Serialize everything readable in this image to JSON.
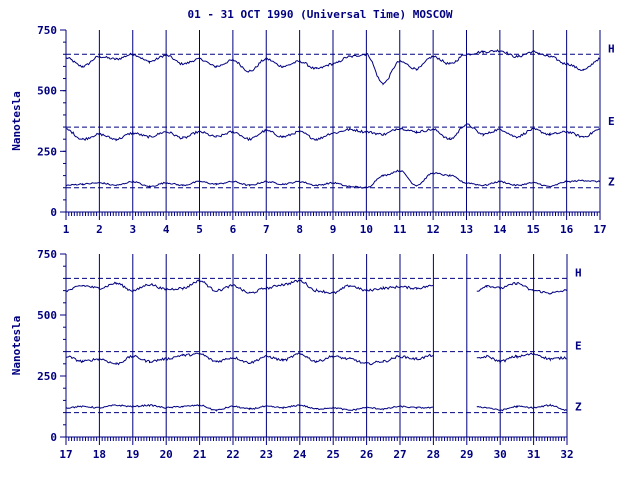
{
  "title": "01 - 31 OCT 1990 (Universal Time) MOSCOW",
  "colors": {
    "ink": "#000080",
    "background": "#ffffff"
  },
  "chart_data": [
    {
      "type": "line",
      "ylabel": "Nanotesla",
      "xlabel": "",
      "xlim": [
        1,
        17
      ],
      "ylim": [
        0,
        750
      ],
      "x_ticks": [
        "1",
        "2",
        "3",
        "4",
        "5",
        "6",
        "7",
        "8",
        "9",
        "10",
        "11",
        "12",
        "13",
        "14",
        "15",
        "16",
        "17"
      ],
      "y_ticks": [
        "0",
        "250",
        "500",
        "750"
      ],
      "grid": "vertical lines at each day",
      "reference_levels": [
        650,
        350,
        100
      ],
      "series": [
        {
          "name": "H",
          "baseline": 650,
          "x": [
            1,
            1.5,
            2,
            2.5,
            3,
            3.5,
            4,
            4.5,
            5,
            5.5,
            6,
            6.5,
            7,
            7.5,
            8,
            8.5,
            9,
            9.5,
            10,
            10.5,
            11,
            11.5,
            12,
            12.5,
            13,
            13.5,
            14,
            14.5,
            15,
            15.5,
            16,
            16.5,
            17
          ],
          "values": [
            635,
            600,
            640,
            630,
            650,
            620,
            645,
            610,
            630,
            600,
            625,
            580,
            630,
            600,
            620,
            590,
            610,
            640,
            650,
            530,
            620,
            590,
            640,
            610,
            650,
            660,
            665,
            640,
            660,
            640,
            610,
            585,
            630
          ]
        },
        {
          "name": "E",
          "baseline": 350,
          "x": [
            1,
            1.5,
            2,
            2.5,
            3,
            3.5,
            4,
            4.5,
            5,
            5.5,
            6,
            6.5,
            7,
            7.5,
            8,
            8.5,
            9,
            9.5,
            10,
            10.5,
            11,
            11.5,
            12,
            12.5,
            13,
            13.5,
            14,
            14.5,
            15,
            15.5,
            16,
            16.5,
            17
          ],
          "values": [
            340,
            300,
            320,
            300,
            325,
            310,
            330,
            305,
            330,
            310,
            330,
            300,
            335,
            310,
            330,
            300,
            325,
            340,
            330,
            320,
            345,
            330,
            340,
            300,
            360,
            320,
            340,
            310,
            340,
            320,
            330,
            310,
            340
          ]
        },
        {
          "name": "Z",
          "baseline": 100,
          "x": [
            1,
            1.5,
            2,
            2.5,
            3,
            3.5,
            4,
            4.5,
            5,
            5.5,
            6,
            6.5,
            7,
            7.5,
            8,
            8.5,
            9,
            9.5,
            10,
            10.5,
            11,
            11.5,
            12,
            12.5,
            13,
            13.5,
            14,
            14.5,
            15,
            15.5,
            16,
            16.5,
            17
          ],
          "values": [
            110,
            115,
            120,
            110,
            125,
            105,
            120,
            110,
            125,
            115,
            125,
            110,
            125,
            115,
            125,
            110,
            120,
            105,
            100,
            150,
            170,
            110,
            160,
            150,
            120,
            110,
            125,
            110,
            120,
            105,
            125,
            130,
            125
          ]
        }
      ]
    },
    {
      "type": "line",
      "ylabel": "Nanotesla",
      "xlabel": "",
      "xlim": [
        17,
        32
      ],
      "ylim": [
        0,
        750
      ],
      "x_ticks": [
        "17",
        "18",
        "19",
        "20",
        "21",
        "22",
        "23",
        "24",
        "25",
        "26",
        "27",
        "28",
        "29",
        "30",
        "31",
        "32"
      ],
      "y_ticks": [
        "0",
        "250",
        "500",
        "750"
      ],
      "grid": "vertical lines at each day",
      "reference_levels": [
        650,
        350,
        100
      ],
      "data_gap": [
        28,
        29.3
      ],
      "series": [
        {
          "name": "H",
          "baseline": 650,
          "x": [
            17,
            17.5,
            18,
            18.5,
            19,
            19.5,
            20,
            20.5,
            21,
            21.5,
            22,
            22.5,
            23,
            23.5,
            24,
            24.5,
            25,
            25.5,
            26,
            26.5,
            27,
            27.5,
            28,
            null,
            29.3,
            29.6,
            30,
            30.5,
            31,
            31.5,
            32
          ],
          "values": [
            600,
            620,
            610,
            630,
            600,
            625,
            605,
            610,
            640,
            600,
            620,
            590,
            610,
            625,
            640,
            600,
            590,
            620,
            600,
            610,
            615,
            610,
            620,
            null,
            600,
            620,
            610,
            630,
            600,
            590,
            600
          ]
        },
        {
          "name": "E",
          "baseline": 350,
          "x": [
            17,
            17.5,
            18,
            18.5,
            19,
            19.5,
            20,
            20.5,
            21,
            21.5,
            22,
            22.5,
            23,
            23.5,
            24,
            24.5,
            25,
            25.5,
            26,
            26.5,
            27,
            27.5,
            28,
            null,
            29.3,
            29.6,
            30,
            30.5,
            31,
            31.5,
            32
          ],
          "values": [
            330,
            310,
            320,
            300,
            330,
            310,
            320,
            335,
            340,
            310,
            325,
            305,
            330,
            315,
            340,
            310,
            330,
            320,
            300,
            310,
            330,
            320,
            335,
            null,
            320,
            330,
            310,
            330,
            340,
            320,
            325
          ]
        },
        {
          "name": "Z",
          "baseline": 100,
          "x": [
            17,
            17.5,
            18,
            18.5,
            19,
            19.5,
            20,
            20.5,
            21,
            21.5,
            22,
            22.5,
            23,
            23.5,
            24,
            24.5,
            25,
            25.5,
            26,
            26.5,
            27,
            27.5,
            28,
            null,
            29.3,
            29.6,
            30,
            30.5,
            31,
            31.5,
            32
          ],
          "values": [
            120,
            125,
            120,
            130,
            125,
            130,
            120,
            125,
            130,
            110,
            125,
            115,
            125,
            120,
            130,
            115,
            120,
            110,
            120,
            115,
            125,
            120,
            120,
            null,
            125,
            120,
            110,
            125,
            120,
            130,
            110
          ]
        }
      ]
    }
  ]
}
